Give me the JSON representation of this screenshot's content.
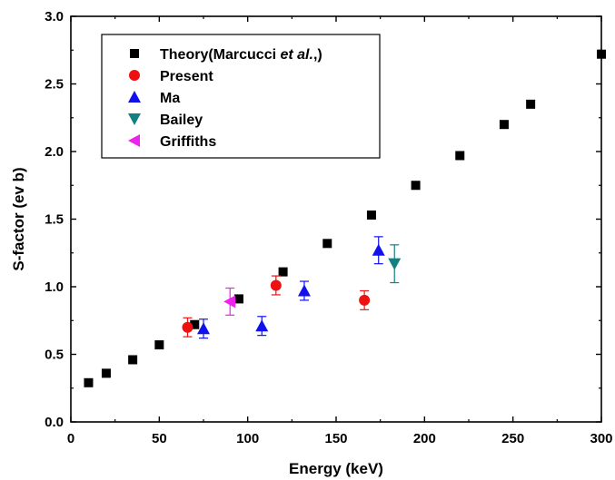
{
  "chart_data": {
    "type": "scatter",
    "title": "",
    "xlabel": "Energy (keV)",
    "ylabel": "S-factor (ev b)",
    "xlim": [
      0,
      300
    ],
    "ylim": [
      0,
      3.0
    ],
    "xticks": [
      "0",
      "50",
      "100",
      "150",
      "200",
      "250",
      "300"
    ],
    "yticks": [
      "0.0",
      "0.5",
      "1.0",
      "1.5",
      "2.0",
      "2.5",
      "3.0"
    ],
    "grid": false,
    "legend_position": "top-left",
    "series": [
      {
        "name": "Theory(Marcucci et al.,)",
        "legend_prefix": "Theory(Marcucci ",
        "legend_italic": "et al.",
        "legend_suffix": ",)",
        "marker": "square",
        "color": "#000000",
        "points": [
          {
            "x": 10,
            "y": 0.29
          },
          {
            "x": 20,
            "y": 0.36
          },
          {
            "x": 35,
            "y": 0.46
          },
          {
            "x": 50,
            "y": 0.57
          },
          {
            "x": 70,
            "y": 0.72
          },
          {
            "x": 95,
            "y": 0.91
          },
          {
            "x": 120,
            "y": 1.11
          },
          {
            "x": 145,
            "y": 1.32
          },
          {
            "x": 170,
            "y": 1.53
          },
          {
            "x": 195,
            "y": 1.75
          },
          {
            "x": 220,
            "y": 1.97
          },
          {
            "x": 245,
            "y": 2.2
          },
          {
            "x": 260,
            "y": 2.35
          },
          {
            "x": 300,
            "y": 2.72
          }
        ]
      },
      {
        "name": "Present",
        "marker": "circle",
        "color": "#ee1111",
        "points": [
          {
            "x": 66,
            "y": 0.7,
            "err": 0.07
          },
          {
            "x": 116,
            "y": 1.01,
            "err": 0.07
          },
          {
            "x": 166,
            "y": 0.9,
            "err": 0.07
          }
        ]
      },
      {
        "name": "Ma",
        "marker": "triangle-up",
        "color": "#1111ee",
        "points": [
          {
            "x": 75,
            "y": 0.69,
            "err": 0.07
          },
          {
            "x": 108,
            "y": 0.71,
            "err": 0.07
          },
          {
            "x": 132,
            "y": 0.97,
            "err": 0.07
          },
          {
            "x": 174,
            "y": 1.27,
            "err": 0.1
          }
        ]
      },
      {
        "name": "Bailey",
        "marker": "triangle-down",
        "color": "#118080",
        "points": [
          {
            "x": 183,
            "y": 1.17,
            "err": 0.14
          }
        ]
      },
      {
        "name": "Griffiths",
        "marker": "triangle-left",
        "color": "#ee22ee",
        "points": [
          {
            "x": 90,
            "y": 0.89,
            "err": 0.1
          }
        ]
      }
    ]
  }
}
